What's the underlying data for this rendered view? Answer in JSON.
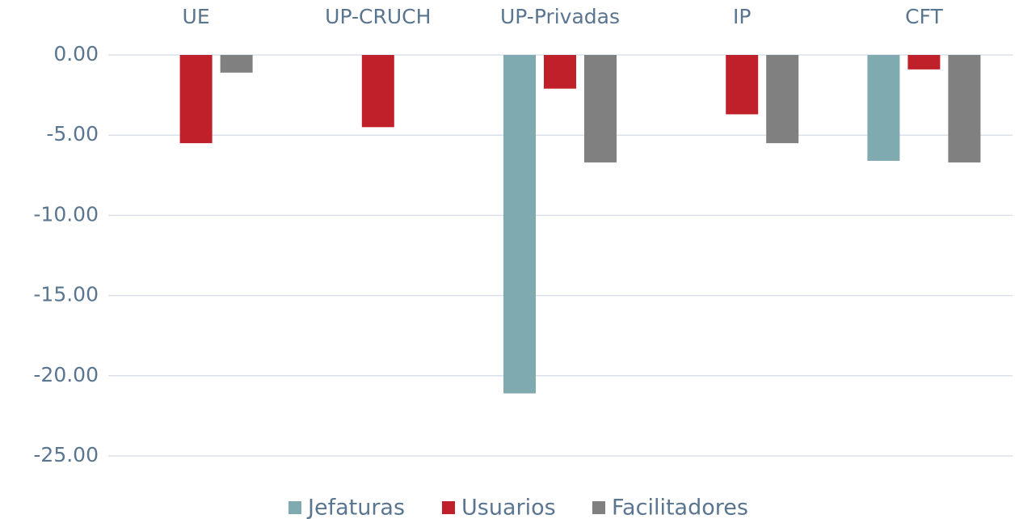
{
  "chart_data": {
    "type": "bar",
    "categories": [
      "UE",
      "UP-CRUCH",
      "UP-Privadas",
      "IP",
      "CFT"
    ],
    "series": [
      {
        "name": "Jefaturas",
        "color": "#7faab0",
        "values": [
          null,
          null,
          -21.1,
          null,
          -6.6
        ]
      },
      {
        "name": "Usuarios",
        "color": "#c0202a",
        "values": [
          -5.5,
          -4.5,
          -2.1,
          -3.7,
          -0.9
        ]
      },
      {
        "name": "Facilitadores",
        "color": "#808080",
        "values": [
          -1.1,
          null,
          -6.7,
          -5.5,
          -6.7
        ]
      }
    ],
    "ylim": [
      -25,
      0
    ],
    "yticks": [
      {
        "value": 0,
        "label": "0.00"
      },
      {
        "value": -5,
        "label": "-5.00"
      },
      {
        "value": -10,
        "label": "-10.00"
      },
      {
        "value": -15,
        "label": "-15.00"
      },
      {
        "value": -20,
        "label": "-20.00"
      },
      {
        "value": -25,
        "label": "-25.00"
      }
    ],
    "grid": true,
    "legend": "bottom"
  }
}
